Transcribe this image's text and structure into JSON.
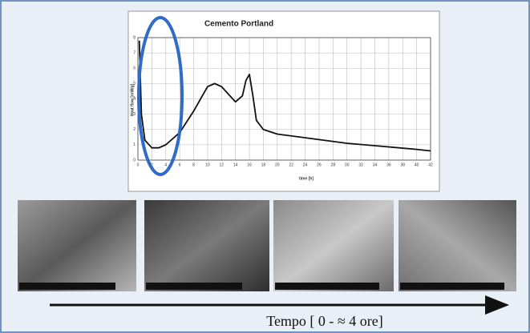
{
  "chart_data": {
    "type": "line",
    "title": "Cemento Portland",
    "x_label": "time [h]",
    "y_label": "Heat flow [mW/g]",
    "x": [
      0.2,
      0.5,
      1,
      2,
      3,
      4,
      6,
      8,
      10,
      11,
      12,
      13,
      14,
      15,
      15.5,
      16,
      16.5,
      17,
      18,
      20,
      25,
      30,
      35,
      40,
      42
    ],
    "values": [
      7.8,
      3,
      1.3,
      0.8,
      0.8,
      1.0,
      1.8,
      3.2,
      4.8,
      5.0,
      4.8,
      4.3,
      3.8,
      4.2,
      5.2,
      5.6,
      4.2,
      2.6,
      2.0,
      1.7,
      1.4,
      1.1,
      0.9,
      0.7,
      0.6
    ],
    "color": "#111111",
    "xlim": [
      0,
      42
    ],
    "xticks": [
      0,
      2,
      4,
      6,
      8,
      10,
      12,
      14,
      16,
      18,
      20,
      22,
      24,
      26,
      28,
      30,
      32,
      34,
      36,
      38,
      40,
      42
    ],
    "ylim": [
      0,
      8
    ],
    "yticks": [
      0,
      1,
      2,
      3,
      4,
      5,
      6,
      7,
      8
    ],
    "grid": true,
    "caption": "Tempo [ 0 - ≈ 4 ore]"
  }
}
